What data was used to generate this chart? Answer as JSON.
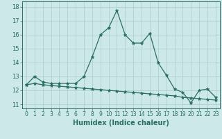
{
  "xlabel": "Humidex (Indice chaleur)",
  "xlim": [
    -0.5,
    23.5
  ],
  "ylim": [
    10.7,
    18.4
  ],
  "yticks": [
    11,
    12,
    13,
    14,
    15,
    16,
    17,
    18
  ],
  "xticks": [
    0,
    1,
    2,
    3,
    4,
    5,
    6,
    7,
    8,
    9,
    10,
    11,
    12,
    13,
    14,
    15,
    16,
    17,
    18,
    19,
    20,
    21,
    22,
    23
  ],
  "bg_color": "#cce8e8",
  "line_color": "#2a6e62",
  "grid_color": "#aacccc",
  "line1_x": [
    0,
    1,
    2,
    3,
    4,
    5,
    6,
    7,
    8,
    9,
    10,
    11,
    12,
    13,
    14,
    15,
    16,
    17,
    18,
    19,
    20,
    21,
    22,
    23
  ],
  "line1_y": [
    12.4,
    13.0,
    12.6,
    12.5,
    12.5,
    12.5,
    12.5,
    13.0,
    14.4,
    16.0,
    16.5,
    17.75,
    16.0,
    15.4,
    15.4,
    16.1,
    14.0,
    13.1,
    12.1,
    11.85,
    11.1,
    12.0,
    12.1,
    11.5
  ],
  "line2_x": [
    0,
    1,
    2,
    3,
    4,
    5,
    6,
    7,
    8,
    9,
    10,
    11,
    12,
    13,
    14,
    15,
    16,
    17,
    18,
    19,
    20,
    21,
    22,
    23
  ],
  "line2_y": [
    12.4,
    12.5,
    12.4,
    12.35,
    12.3,
    12.25,
    12.2,
    12.15,
    12.1,
    12.05,
    12.0,
    11.95,
    11.9,
    11.85,
    11.8,
    11.75,
    11.7,
    11.65,
    11.6,
    11.5,
    11.45,
    11.4,
    11.35,
    11.3
  ]
}
